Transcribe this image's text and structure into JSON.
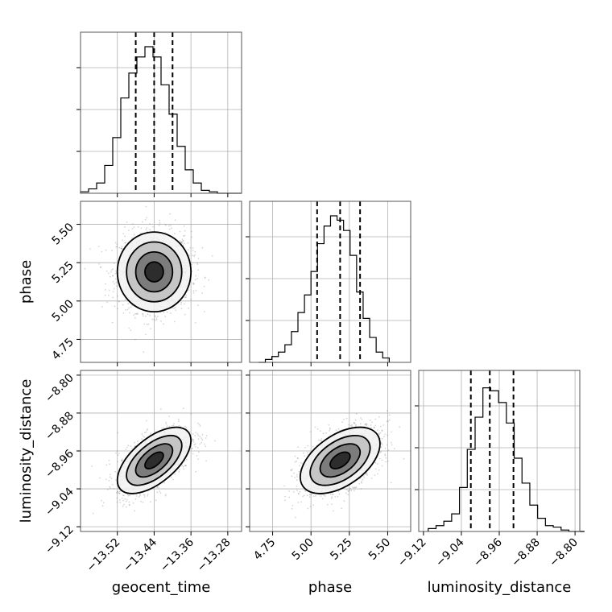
{
  "chart_data": {
    "type": "corner",
    "parameters": [
      "geocent_time",
      "phase",
      "luminosity_distance"
    ],
    "ticks": {
      "geocent_time": [
        -13.52,
        -13.44,
        -13.36,
        -13.28
      ],
      "phase": [
        4.75,
        5.0,
        5.25,
        5.5
      ],
      "luminosity_distance": [
        -9.12,
        -9.04,
        -8.96,
        -8.88,
        -8.8
      ]
    },
    "tick_labels": {
      "geocent_time": [
        "−13.52",
        "−13.44",
        "−13.36",
        "−13.28"
      ],
      "phase": [
        "4.75",
        "5.00",
        "5.25",
        "5.50"
      ],
      "luminosity_distance": [
        "−9.12",
        "−9.04",
        "−8.96",
        "−8.88",
        "−8.80"
      ]
    },
    "ranges": {
      "geocent_time": [
        -13.6,
        -13.25
      ],
      "phase": [
        4.6,
        5.65
      ],
      "luminosity_distance": [
        -9.13,
        -8.79
      ]
    },
    "quantiles": {
      "geocent_time": [
        -13.48,
        -13.44,
        -13.4
      ],
      "phase": [
        5.04,
        5.19,
        5.32
      ],
      "luminosity_distance": [
        -9.02,
        -8.98,
        -8.93
      ]
    },
    "histograms": {
      "geocent_time": {
        "edges": [
          -13.6,
          -13.5825,
          -13.565,
          -13.5475,
          -13.53,
          -13.5125,
          -13.495,
          -13.4775,
          -13.46,
          -13.4425,
          -13.425,
          -13.4075,
          -13.39,
          -13.3725,
          -13.355,
          -13.3375,
          -13.32,
          -13.3025,
          -13.285,
          -13.2675,
          -13.25
        ],
        "counts": [
          0.01,
          0.03,
          0.07,
          0.19,
          0.38,
          0.65,
          0.82,
          0.93,
          1.0,
          0.93,
          0.74,
          0.54,
          0.32,
          0.16,
          0.07,
          0.02,
          0.01,
          0,
          0,
          0
        ]
      },
      "phase": {
        "edges": [
          4.66,
          4.7025,
          4.745,
          4.7875,
          4.83,
          4.8725,
          4.915,
          4.9575,
          5.0,
          5.0425,
          5.085,
          5.1275,
          5.17,
          5.2125,
          5.255,
          5.2975,
          5.34,
          5.3825,
          5.425,
          5.4675,
          5.51
        ],
        "counts": [
          0,
          0.02,
          0.04,
          0.07,
          0.12,
          0.21,
          0.34,
          0.46,
          0.62,
          0.81,
          0.93,
          1.0,
          0.97,
          0.9,
          0.73,
          0.48,
          0.3,
          0.17,
          0.07,
          0.03
        ]
      },
      "luminosity_distance": {
        "edges": [
          -9.11,
          -9.0935,
          -9.077,
          -9.0605,
          -9.044,
          -9.0275,
          -9.011,
          -8.9945,
          -8.978,
          -8.9615,
          -8.945,
          -8.9285,
          -8.912,
          -8.8955,
          -8.879,
          -8.8625,
          -8.846,
          -8.8295,
          -8.813,
          -8.7965,
          -8.78
        ],
        "counts": [
          0.02,
          0.04,
          0.07,
          0.12,
          0.3,
          0.56,
          0.78,
          0.98,
          0.96,
          0.88,
          0.74,
          0.5,
          0.33,
          0.18,
          0.09,
          0.04,
          0.03,
          0.01,
          0,
          0
        ]
      }
    },
    "joint_2d": [
      {
        "x": "geocent_time",
        "y": "phase",
        "mean": [
          -13.44,
          5.19
        ],
        "sigma": [
          0.04,
          0.13
        ],
        "rho": 0.0
      },
      {
        "x": "geocent_time",
        "y": "luminosity_distance",
        "mean": [
          -13.44,
          -8.98
        ],
        "sigma": [
          0.04,
          0.035
        ],
        "rho": 0.6
      },
      {
        "x": "phase",
        "y": "luminosity_distance",
        "mean": [
          5.19,
          -8.98
        ],
        "sigma": [
          0.13,
          0.035
        ],
        "rho": 0.5
      }
    ],
    "contour_levels_sigma": [
      0.5,
      1.0,
      1.5,
      2.0
    ],
    "grid": true
  }
}
